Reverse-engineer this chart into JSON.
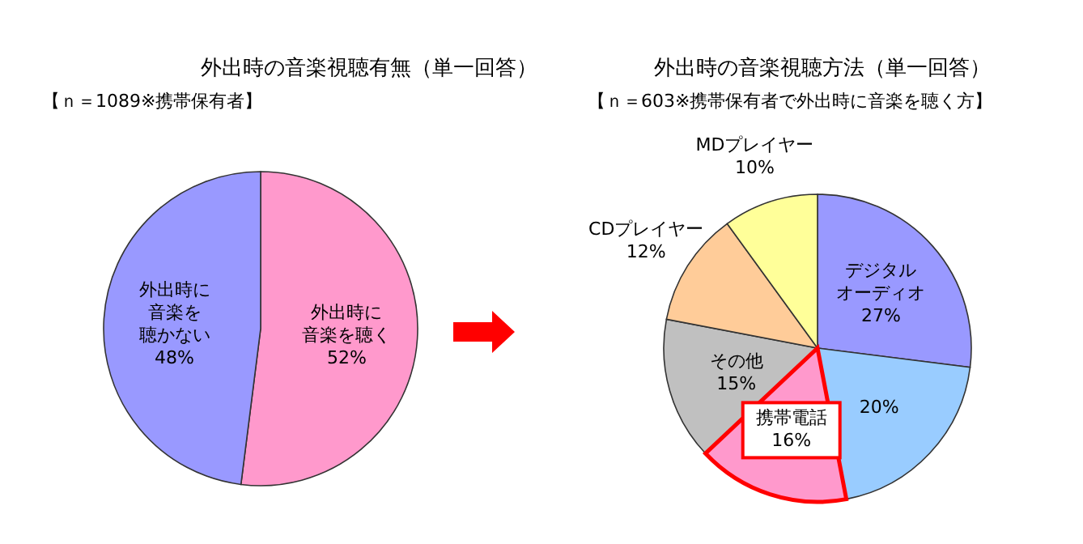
{
  "chart_data": [
    {
      "type": "pie",
      "title": "外出時の音楽視聴有無（単一回答）",
      "subtitle": "【ｎ＝1089※携帯保有者】",
      "categories": [
        "外出時に音楽を聴く",
        "外出時に音楽を聴かない"
      ],
      "values": [
        52,
        48
      ],
      "colors": [
        "#ff99cc",
        "#9999ff"
      ],
      "value_labels": [
        "52%",
        "48%"
      ]
    },
    {
      "type": "pie",
      "title": "外出時の音楽視聴方法（単一回答）",
      "subtitle": "【ｎ＝603※携帯保有者で外出時に音楽を聴く方】",
      "categories": [
        "デジタルオーディオ",
        null,
        "携帯電話",
        "その他",
        "CDプレイヤー",
        "MDプレイヤー"
      ],
      "values": [
        27,
        20,
        16,
        15,
        12,
        10
      ],
      "colors": [
        "#9999ff",
        "#99ccff",
        "#ff99cc",
        "#c0c0c0",
        "#ffcc99",
        "#ffff99"
      ],
      "value_labels": [
        "27%",
        "20%",
        "16%",
        "15%",
        "12%",
        "10%"
      ]
    }
  ]
}
